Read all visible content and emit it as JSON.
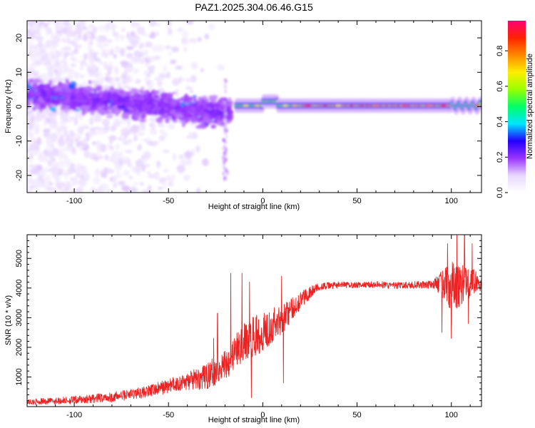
{
  "figure_title": "PAZ1.2025.304.06.46.G15",
  "chart_data": [
    {
      "type": "heatmap",
      "title": "PAZ1.2025.304.06.46.G15",
      "xlabel": "Height of straight line (km)",
      "ylabel": "Frequency (Hz)",
      "xlim": [
        -125,
        116
      ],
      "ylim": [
        -25,
        25
      ],
      "xticks": [
        -100,
        -50,
        0,
        50,
        100
      ],
      "yticks": [
        -20,
        -10,
        0,
        10,
        20
      ],
      "colorbar": {
        "label": "Normalized spectral amplitude",
        "range": [
          0,
          0.97
        ],
        "ticks": [
          0.0,
          0.2,
          0.4,
          0.6,
          0.8
        ],
        "tick_labels": [
          "0.0",
          "0.2",
          "0.4",
          "0.6",
          "0.8"
        ],
        "colormap": [
          "#ffffff",
          "#e8d8ff",
          "#9933ff",
          "#2200ff",
          "#00e5ff",
          "#00ff66",
          "#99ff00",
          "#ffee00",
          "#ff8800",
          "#ff2200",
          "#ff0077"
        ]
      },
      "features": [
        {
          "name": "scattered noise",
          "x_range": [
            -125,
            -20
          ],
          "freq_range": [
            -25,
            25
          ],
          "amplitude": 0.05
        },
        {
          "name": "main band descending",
          "x_start": -125,
          "x_end": -20,
          "freq_start": 4,
          "freq_end": -2,
          "amplitude": 0.2
        },
        {
          "name": "tone",
          "x_range": [
            -12,
            116
          ],
          "freq": 0.3,
          "amplitude": 0.6
        },
        {
          "name": "strong tone segment",
          "x_range": [
            20,
            100
          ],
          "freq": 0,
          "amplitude": 0.85
        }
      ]
    },
    {
      "type": "line",
      "title": "",
      "xlabel": "Height of straight line (km)",
      "ylabel": "SNR (10 * v/v)",
      "xlim": [
        -125,
        116
      ],
      "ylim": [
        0,
        5800
      ],
      "xticks": [
        -100,
        -50,
        0,
        50,
        100
      ],
      "yticks": [
        1000,
        2000,
        3000,
        4000,
        5000
      ],
      "color": "#ee2222",
      "trend_x": [
        -125,
        -100,
        -80,
        -60,
        -50,
        -40,
        -30,
        -20,
        -15,
        -10,
        -5,
        0,
        5,
        10,
        15,
        20,
        25,
        30,
        40,
        50,
        60,
        70,
        80,
        90,
        95,
        100,
        105,
        110,
        113,
        116
      ],
      "trend_y": [
        150,
        220,
        320,
        520,
        700,
        850,
        1000,
        1450,
        1800,
        2150,
        2350,
        2550,
        2750,
        2950,
        3250,
        3600,
        3850,
        4050,
        4100,
        4100,
        4120,
        4080,
        4100,
        4120,
        4150,
        4000,
        4100,
        4150,
        4250,
        4050
      ],
      "noise_x": [
        -125,
        -60,
        -40,
        -25,
        -10,
        0,
        10,
        20,
        30,
        50,
        90,
        95,
        100,
        105,
        110,
        116
      ],
      "noise_amp": [
        90,
        200,
        300,
        500,
        650,
        700,
        500,
        300,
        120,
        100,
        130,
        450,
        900,
        700,
        600,
        150
      ],
      "spikes": [
        {
          "x": -26,
          "y": 2300
        },
        {
          "x": -24,
          "y": 3150
        },
        {
          "x": -17,
          "y": 4500
        },
        {
          "x": -11,
          "y": 4500
        },
        {
          "x": -7,
          "y": 4200
        },
        {
          "x": -6,
          "y": 300
        },
        {
          "x": 10,
          "y": 4400
        },
        {
          "x": 11,
          "y": 800
        },
        {
          "x": 13,
          "y": 3500
        },
        {
          "x": 95,
          "y": 2500
        },
        {
          "x": 98,
          "y": 5500
        },
        {
          "x": 100,
          "y": 2300
        },
        {
          "x": 103,
          "y": 5800
        },
        {
          "x": 107,
          "y": 5800
        },
        {
          "x": 109,
          "y": 2800
        },
        {
          "x": 111,
          "y": 5500
        }
      ]
    }
  ]
}
